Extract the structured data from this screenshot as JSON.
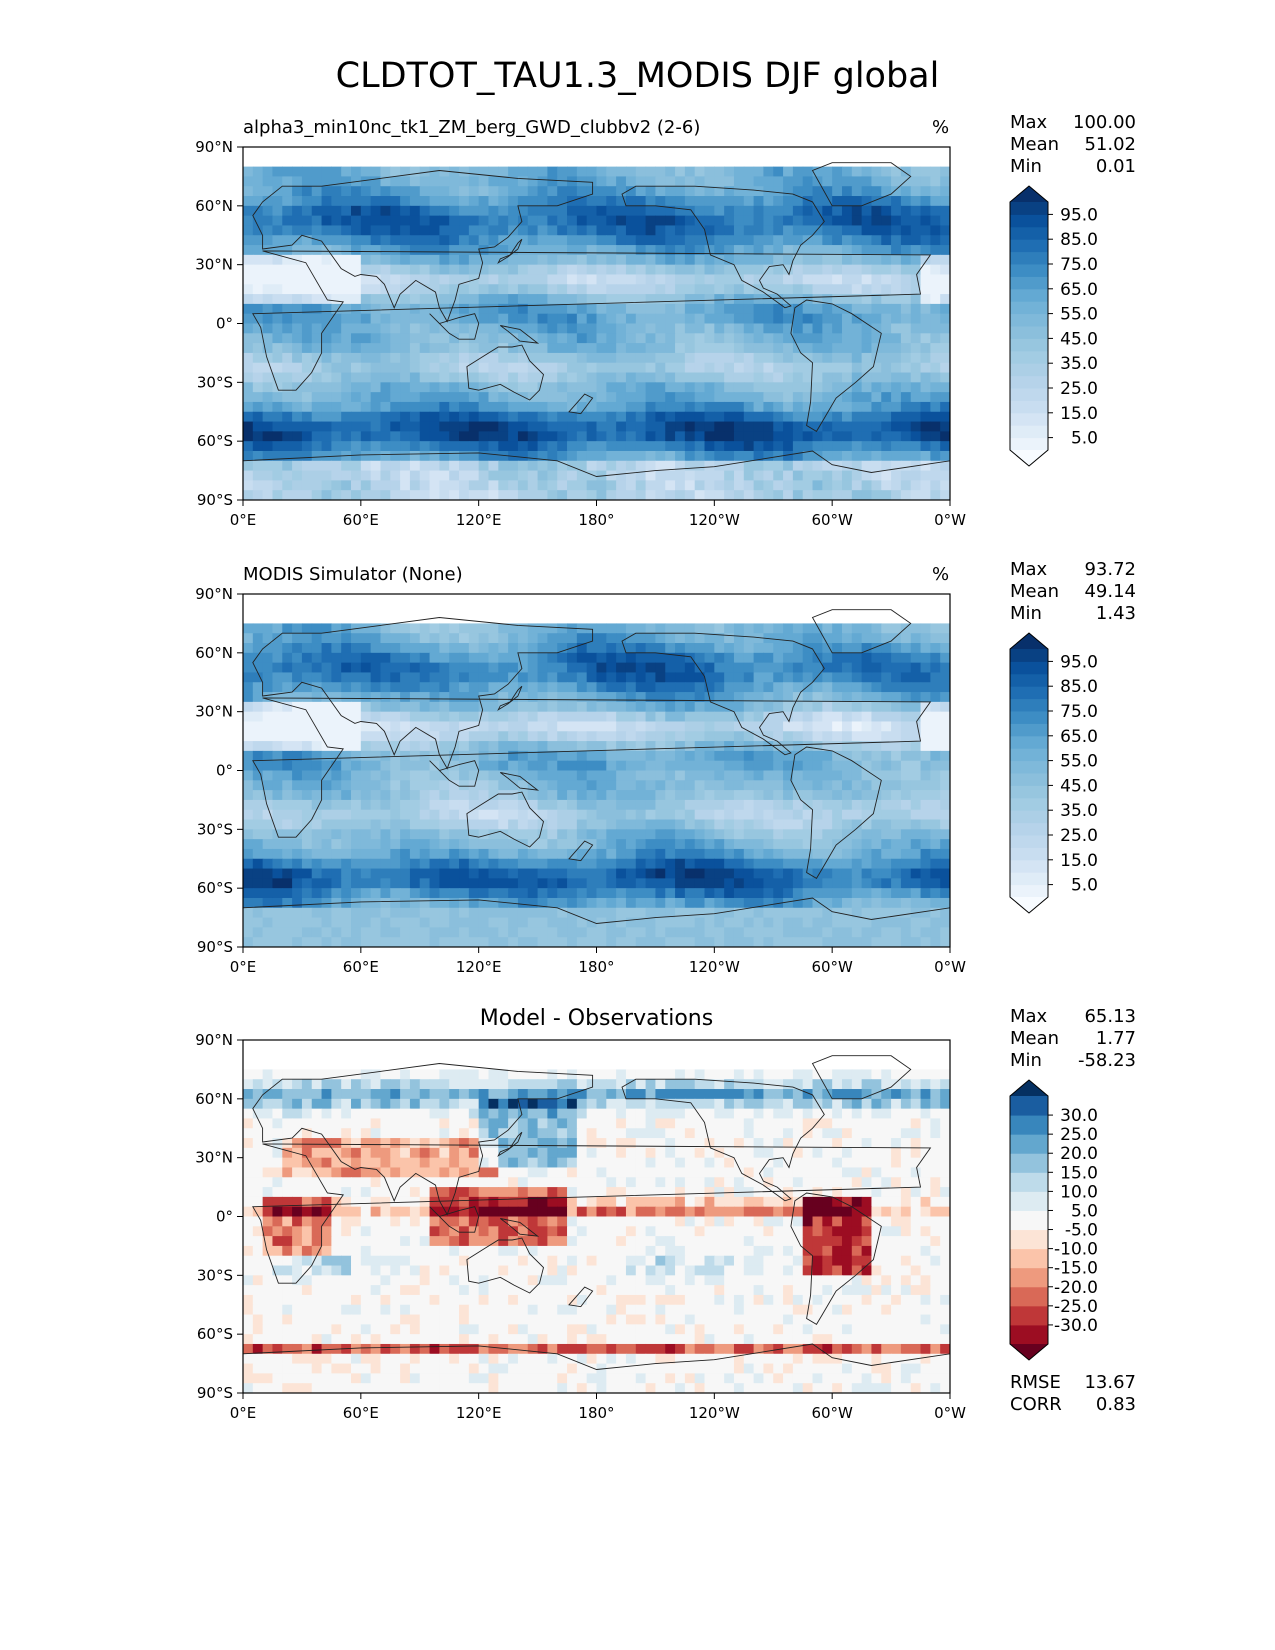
{
  "figure": {
    "suptitle": "CLDTOT_TAU1.3_MODIS DJF global"
  },
  "colors": {
    "blues": [
      "#f7fbff",
      "#deebf7",
      "#c6dbef",
      "#b3d2e9",
      "#9ecae1",
      "#85bcdb",
      "#6baed6",
      "#4292c6",
      "#2171b5",
      "#0a539e",
      "#08306b"
    ],
    "rdbu": [
      "#67001f",
      "#a50f22",
      "#c94741",
      "#e58368",
      "#fab99b",
      "#fde1d0",
      "#f7f7f7",
      "#d9e9f1",
      "#b3d5e7",
      "#7bb6d6",
      "#4393c3",
      "#1e64ab",
      "#053061"
    ],
    "land_line": "#222222"
  },
  "axes": {
    "xticks": [
      "0°E",
      "60°E",
      "120°E",
      "180°",
      "120°W",
      "60°W",
      "0°W"
    ],
    "yticks": [
      "90°N",
      "60°N",
      "30°N",
      "0°",
      "30°S",
      "60°S",
      "90°S"
    ]
  },
  "chart_data": [
    {
      "type": "heatmap",
      "title_left": "alpha3_min10nc_tk1_ZM_berg_GWD_clubbv2 (2-6)",
      "title_right": "%",
      "stats": [
        {
          "label": "Max",
          "value": "100.00"
        },
        {
          "label": "Mean",
          "value": "51.02"
        },
        {
          "label": "Min",
          "value": "0.01"
        }
      ],
      "colorbar": {
        "levels": [
          0,
          5,
          10,
          15,
          20,
          25,
          30,
          35,
          40,
          45,
          50,
          55,
          60,
          65,
          70,
          75,
          80,
          85,
          90,
          95,
          100
        ],
        "tick_labels": [
          "95.0",
          "85.0",
          "75.0",
          "65.0",
          "55.0",
          "45.0",
          "35.0",
          "25.0",
          "15.0",
          "5.0"
        ],
        "extend": "both",
        "cmap": "blues"
      },
      "xlim": [
        0,
        360
      ],
      "ylim": [
        -90,
        90
      ]
    },
    {
      "type": "heatmap",
      "title_left": "MODIS Simulator (None)",
      "title_right": "%",
      "stats": [
        {
          "label": "Max",
          "value": "93.72"
        },
        {
          "label": "Mean",
          "value": "49.14"
        },
        {
          "label": "Min",
          "value": "1.43"
        }
      ],
      "colorbar": {
        "levels": [
          0,
          5,
          10,
          15,
          20,
          25,
          30,
          35,
          40,
          45,
          50,
          55,
          60,
          65,
          70,
          75,
          80,
          85,
          90,
          95,
          100
        ],
        "tick_labels": [
          "95.0",
          "85.0",
          "75.0",
          "65.0",
          "55.0",
          "45.0",
          "35.0",
          "25.0",
          "15.0",
          "5.0"
        ],
        "extend": "both",
        "cmap": "blues"
      },
      "xlim": [
        0,
        360
      ],
      "ylim": [
        -90,
        90
      ]
    },
    {
      "type": "heatmap",
      "title_center": "Model - Observations",
      "stats": [
        {
          "label": "Max",
          "value": "65.13"
        },
        {
          "label": "Mean",
          "value": "1.77"
        },
        {
          "label": "Min",
          "value": "-58.23"
        }
      ],
      "bottom_stats": [
        {
          "label": "RMSE",
          "value": "13.67"
        },
        {
          "label": "CORR",
          "value": "0.83"
        }
      ],
      "colorbar": {
        "levels": [
          -35,
          -30,
          -25,
          -20,
          -15,
          -10,
          -5,
          5,
          10,
          15,
          20,
          25,
          30,
          35
        ],
        "tick_labels": [
          "30.0",
          "25.0",
          "20.0",
          "15.0",
          "10.0",
          "5.0",
          "-5.0",
          "-10.0",
          "-15.0",
          "-20.0",
          "-25.0",
          "-30.0"
        ],
        "extend": "both",
        "cmap": "rdbu"
      },
      "xlim": [
        0,
        360
      ],
      "ylim": [
        -90,
        90
      ]
    }
  ]
}
